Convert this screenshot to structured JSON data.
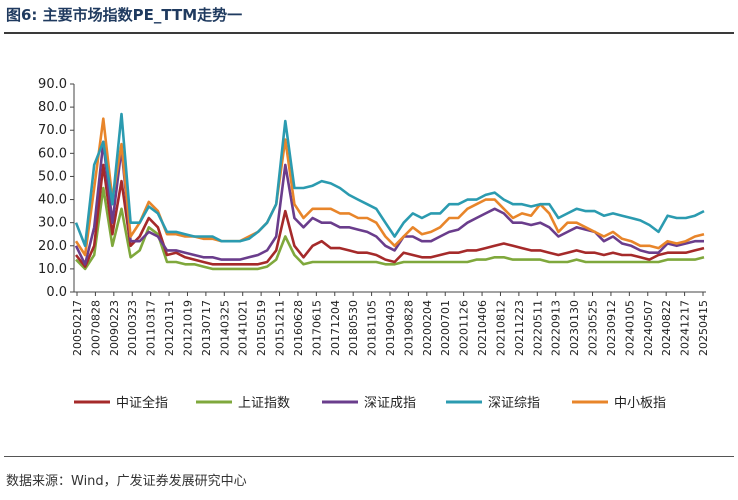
{
  "header": {
    "title": "图6:  主要市场指数PE_TTM走势一"
  },
  "footer": {
    "source": "数据来源：Wind，广发证券发展研究中心"
  },
  "chart_data": {
    "type": "line",
    "title": "",
    "xlabel": "",
    "ylabel": "",
    "ylim": [
      0,
      90
    ],
    "yticks": [
      "0.0",
      "10.0",
      "20.0",
      "30.0",
      "40.0",
      "50.0",
      "60.0",
      "70.0",
      "80.0",
      "90.0"
    ],
    "x_tick_labels": [
      "20050217",
      "20070828",
      "20090223",
      "20100323",
      "20110317",
      "20120131",
      "20121019",
      "20130717",
      "20140325",
      "20141021",
      "20150519",
      "20151211",
      "20160628",
      "20170615",
      "20171204",
      "20180530",
      "20181105",
      "20190403",
      "20190828",
      "20200204",
      "20200701",
      "20201126",
      "20210406",
      "20210812",
      "20211223",
      "20220511",
      "20220913",
      "20230130",
      "20230525",
      "20230912",
      "20240105",
      "20240507",
      "20240822",
      "20241217",
      "20250415"
    ],
    "legend_position": "bottom",
    "grid": false,
    "series": [
      {
        "name": "中证全指",
        "color": "#a52a2a",
        "values": [
          16,
          11,
          20,
          55,
          25,
          48,
          20,
          24,
          32,
          28,
          16,
          17,
          15,
          14,
          13,
          12,
          12,
          12,
          12,
          12,
          12,
          13,
          18,
          35,
          20,
          15,
          20,
          22,
          19,
          19,
          18,
          17,
          17,
          16,
          14,
          13,
          17,
          16,
          15,
          15,
          16,
          17,
          17,
          18,
          18,
          19,
          20,
          21,
          20,
          19,
          18,
          18,
          17,
          16,
          17,
          18,
          17,
          17,
          16,
          17,
          16,
          16,
          15,
          14,
          16,
          17,
          17,
          17,
          18,
          19
        ]
      },
      {
        "name": "上证指数",
        "color": "#7fa83c",
        "values": [
          14,
          10,
          16,
          45,
          20,
          36,
          15,
          18,
          28,
          25,
          13,
          13,
          12,
          12,
          11,
          10,
          10,
          10,
          10,
          10,
          10,
          11,
          14,
          24,
          16,
          12,
          13,
          13,
          13,
          13,
          13,
          13,
          13,
          13,
          12,
          12,
          13,
          13,
          13,
          13,
          13,
          13,
          13,
          13,
          14,
          14,
          15,
          15,
          14,
          14,
          14,
          14,
          13,
          13,
          13,
          14,
          13,
          13,
          13,
          13,
          13,
          13,
          13,
          13,
          13,
          14,
          14,
          14,
          14,
          15
        ]
      },
      {
        "name": "深证成指",
        "color": "#6a3d8c",
        "values": [
          20,
          12,
          28,
          65,
          30,
          62,
          22,
          22,
          26,
          24,
          18,
          18,
          17,
          16,
          15,
          15,
          14,
          14,
          14,
          15,
          16,
          18,
          24,
          55,
          32,
          28,
          32,
          30,
          30,
          28,
          28,
          27,
          26,
          24,
          20,
          18,
          24,
          24,
          22,
          22,
          24,
          26,
          27,
          30,
          32,
          34,
          36,
          34,
          30,
          30,
          29,
          30,
          28,
          24,
          26,
          28,
          27,
          26,
          22,
          24,
          21,
          20,
          18,
          17,
          17,
          21,
          20,
          21,
          22,
          22
        ]
      },
      {
        "name": "深证综指",
        "color": "#2b9bb0",
        "values": [
          30,
          20,
          55,
          65,
          38,
          77,
          30,
          30,
          37,
          34,
          26,
          26,
          25,
          24,
          24,
          24,
          22,
          22,
          22,
          23,
          26,
          30,
          38,
          74,
          45,
          45,
          46,
          48,
          47,
          45,
          42,
          40,
          38,
          36,
          30,
          24,
          30,
          34,
          32,
          34,
          34,
          38,
          38,
          40,
          40,
          42,
          43,
          40,
          38,
          38,
          37,
          38,
          38,
          32,
          34,
          36,
          35,
          35,
          33,
          34,
          33,
          32,
          31,
          29,
          26,
          33,
          32,
          32,
          33,
          35
        ]
      },
      {
        "name": "中小板指",
        "color": "#e8852a",
        "values": [
          22,
          16,
          45,
          75,
          40,
          64,
          24,
          30,
          39,
          35,
          25,
          25,
          24,
          24,
          23,
          23,
          22,
          22,
          22,
          24,
          26,
          30,
          38,
          66,
          38,
          32,
          36,
          36,
          36,
          34,
          34,
          32,
          32,
          30,
          24,
          20,
          24,
          28,
          25,
          26,
          28,
          32,
          32,
          36,
          38,
          40,
          40,
          36,
          32,
          34,
          33,
          38,
          34,
          26,
          30,
          30,
          28,
          26,
          24,
          26,
          23,
          22,
          20,
          20,
          19,
          22,
          21,
          22,
          24,
          25
        ]
      }
    ]
  }
}
